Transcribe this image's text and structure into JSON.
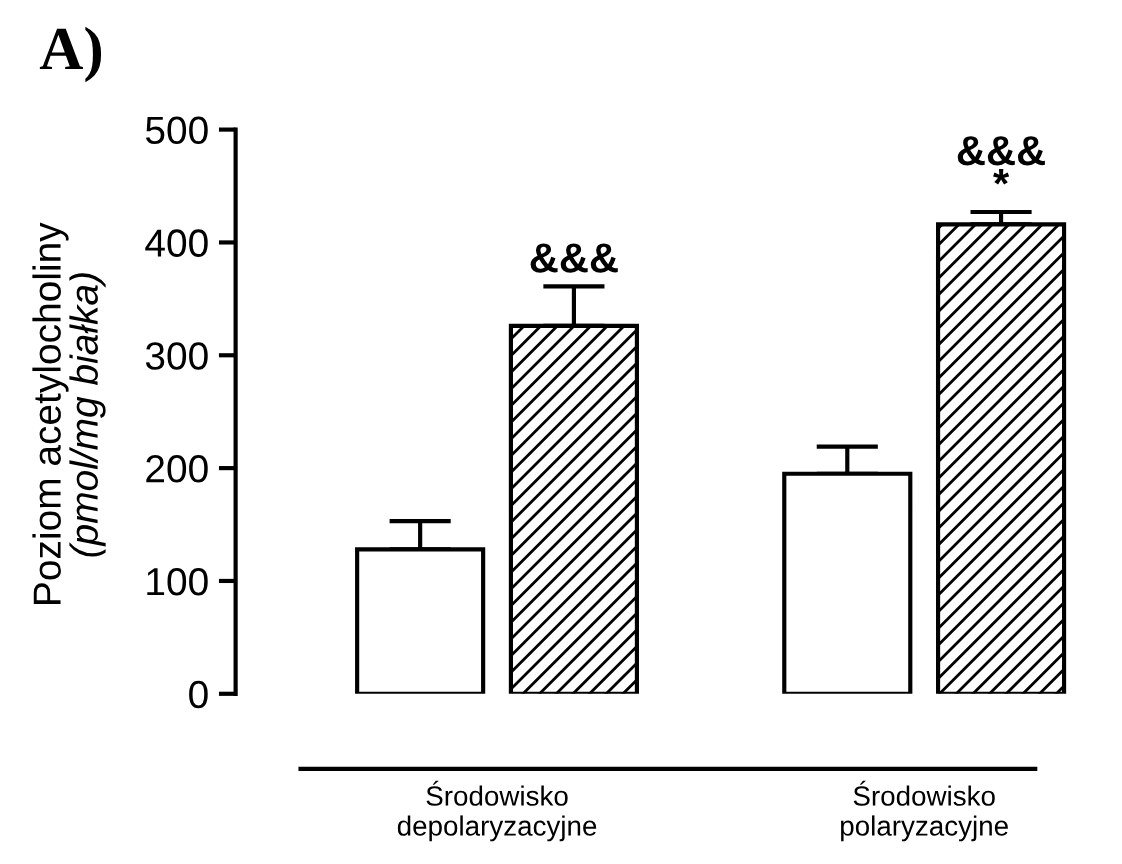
{
  "chart_data": {
    "type": "bar",
    "title": "A)",
    "ylabel": "Poziom acetylocholiny\n(pmol/mg białka)",
    "categories": [
      "Środowisko\ndepolaryzacyjne",
      "Środowisko\npolaryzacyjne"
    ],
    "series": [
      {
        "color": "#ffffff",
        "values": [
          128,
          195
        ],
        "errors": [
          25,
          24
        ]
      },
      {
        "color": "#000000",
        "values": [
          326,
          416
        ],
        "errors": [
          35,
          11
        ]
      }
    ],
    "ylim": [
      0,
      500
    ],
    "yticks": [
      0,
      100,
      200,
      300,
      400,
      500
    ],
    "grid": false,
    "legend": false,
    "annotations": [
      "&&&",
      "&&&\n*"
    ]
  }
}
